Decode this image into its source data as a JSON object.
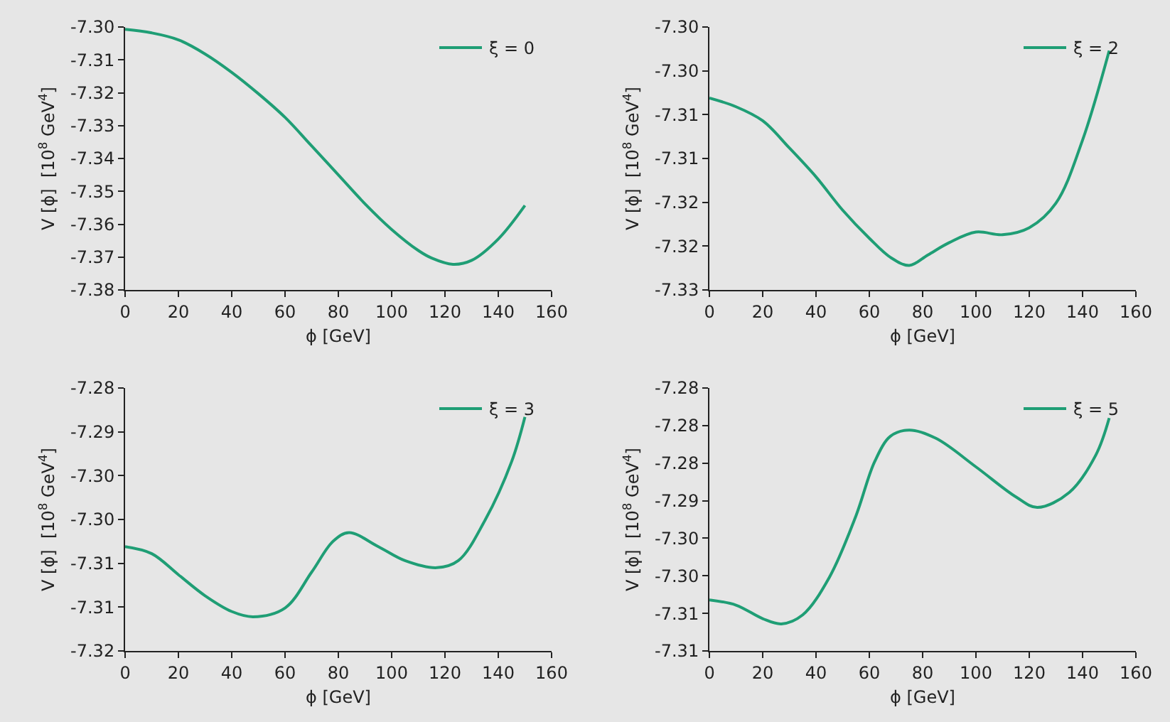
{
  "chart_data": [
    {
      "type": "line",
      "xlabel": "ϕ [GeV]",
      "ylabel": "V [ϕ]  [10$^{8}$ GeV$^{4}$]",
      "legend": "top right",
      "grid": false,
      "x": [
        0,
        10,
        20,
        30,
        40,
        50,
        60,
        70,
        80,
        90,
        100,
        110,
        115,
        123,
        130,
        140,
        150
      ],
      "series": [
        {
          "name": "ξ = 0",
          "color": "#1f9e75",
          "values": [
            -7.3007,
            -7.3018,
            -7.3039,
            -7.3082,
            -7.3138,
            -7.3203,
            -7.3275,
            -7.3362,
            -7.345,
            -7.3538,
            -7.3616,
            -7.368,
            -7.3703,
            -7.3722,
            -7.371,
            -7.3645,
            -7.3543
          ]
        }
      ],
      "xlim": [
        0,
        160
      ],
      "xticks": [
        0,
        20,
        40,
        60,
        80,
        100,
        120,
        140,
        160
      ],
      "ylim": [
        -7.38,
        -7.3
      ],
      "yticks": [
        {
          "value": -7.3,
          "label": "-7.30"
        },
        {
          "value": -7.31,
          "label": "-7.31"
        },
        {
          "value": -7.32,
          "label": "-7.32"
        },
        {
          "value": -7.33,
          "label": "-7.33"
        },
        {
          "value": -7.34,
          "label": "-7.34"
        },
        {
          "value": -7.35,
          "label": "-7.35"
        },
        {
          "value": -7.36,
          "label": "-7.36"
        },
        {
          "value": -7.37,
          "label": "-7.37"
        },
        {
          "value": -7.38,
          "label": "-7.38"
        }
      ]
    },
    {
      "type": "line",
      "xlabel": "ϕ [GeV]",
      "ylabel": "V [ϕ]  [10$^{8}$ GeV$^{4}$]",
      "legend": "top right",
      "grid": false,
      "x": [
        0,
        10,
        20,
        30,
        40,
        50,
        60,
        68,
        75,
        82,
        90,
        100,
        110,
        120,
        130,
        140,
        150
      ],
      "series": [
        {
          "name": "ξ = 2",
          "color": "#1f9e75",
          "values": [
            -7.3081,
            -7.3091,
            -7.3107,
            -7.3138,
            -7.3171,
            -7.3209,
            -7.3241,
            -7.3263,
            -7.3272,
            -7.326,
            -7.3246,
            -7.3234,
            -7.3237,
            -7.3229,
            -7.3201,
            -7.3129,
            -7.3027
          ]
        }
      ],
      "xlim": [
        0,
        160
      ],
      "xticks": [
        0,
        20,
        40,
        60,
        80,
        100,
        120,
        140,
        160
      ],
      "ylim": [
        -7.33,
        -7.3
      ],
      "yticks": [
        {
          "value": -7.3,
          "label": "-7.30"
        },
        {
          "value": -7.305,
          "label": "-7.30"
        },
        {
          "value": -7.31,
          "label": "-7.31"
        },
        {
          "value": -7.315,
          "label": "-7.31"
        },
        {
          "value": -7.32,
          "label": "-7.32"
        },
        {
          "value": -7.325,
          "label": "-7.32"
        },
        {
          "value": -7.33,
          "label": "-7.33"
        }
      ]
    },
    {
      "type": "line",
      "xlabel": "ϕ [GeV]",
      "ylabel": "V [ϕ]  [10$^{8}$ GeV$^{4}$]",
      "legend": "top right",
      "grid": false,
      "x": [
        0,
        10,
        20,
        30,
        40,
        48,
        60,
        70,
        78,
        84,
        95,
        105,
        117,
        125,
        135,
        145,
        150
      ],
      "series": [
        {
          "name": "ξ = 3",
          "color": "#1f9e75",
          "values": [
            -7.3031,
            -7.3039,
            -7.3063,
            -7.3087,
            -7.3105,
            -7.3111,
            -7.3101,
            -7.306,
            -7.3025,
            -7.3015,
            -7.3031,
            -7.3047,
            -7.3055,
            -7.3047,
            -7.3001,
            -7.2934,
            -7.2883
          ]
        }
      ],
      "xlim": [
        0,
        160
      ],
      "xticks": [
        0,
        20,
        40,
        60,
        80,
        100,
        120,
        140,
        160
      ],
      "ylim": [
        -7.315,
        -7.285
      ],
      "yticks": [
        {
          "value": -7.285,
          "label": "-7.28"
        },
        {
          "value": -7.29,
          "label": "-7.29"
        },
        {
          "value": -7.295,
          "label": "-7.30"
        },
        {
          "value": -7.3,
          "label": "-7.30"
        },
        {
          "value": -7.305,
          "label": "-7.31"
        },
        {
          "value": -7.31,
          "label": "-7.31"
        },
        {
          "value": -7.315,
          "label": "-7.32"
        }
      ]
    },
    {
      "type": "line",
      "xlabel": "ϕ [GeV]",
      "ylabel": "V [ϕ]  [10$^{8}$ GeV$^{4}$]",
      "legend": "top right",
      "grid": false,
      "x": [
        0,
        10,
        20,
        27,
        35,
        45,
        55,
        62,
        68,
        75,
        85,
        100,
        115,
        123,
        135,
        145,
        150
      ],
      "series": [
        {
          "name": "ξ = 5",
          "color": "#1f9e75",
          "values": [
            -7.3032,
            -7.3039,
            -7.3057,
            -7.3064,
            -7.3052,
            -7.3002,
            -7.292,
            -7.2848,
            -7.2814,
            -7.2806,
            -7.2817,
            -7.2855,
            -7.2895,
            -7.2909,
            -7.2889,
            -7.2839,
            -7.279
          ]
        }
      ],
      "xlim": [
        0,
        160
      ],
      "xticks": [
        0,
        20,
        40,
        60,
        80,
        100,
        120,
        140,
        160
      ],
      "ylim": [
        -7.31,
        -7.275
      ],
      "yticks": [
        {
          "value": -7.275,
          "label": "-7.28"
        },
        {
          "value": -7.28,
          "label": "-7.28"
        },
        {
          "value": -7.285,
          "label": "-7.28"
        },
        {
          "value": -7.29,
          "label": "-7.29"
        },
        {
          "value": -7.295,
          "label": "-7.30"
        },
        {
          "value": -7.3,
          "label": "-7.30"
        },
        {
          "value": -7.305,
          "label": "-7.31"
        },
        {
          "value": -7.31,
          "label": "-7.31"
        }
      ]
    }
  ]
}
